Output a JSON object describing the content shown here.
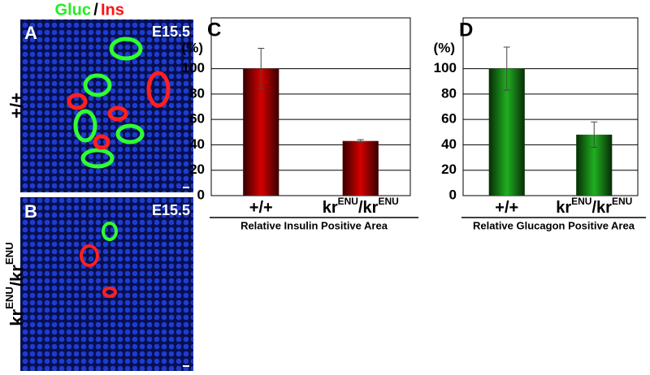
{
  "header": {
    "gluc": "Gluc",
    "slash": "/",
    "ins": "Ins"
  },
  "panels": [
    {
      "letter": "A",
      "stage": "E15.5",
      "genotype": [
        "+/+"
      ]
    },
    {
      "letter": "B",
      "stage": "E15.5",
      "genotype": [
        "kr",
        "ENU",
        "/kr",
        "ENU"
      ]
    }
  ],
  "chart_data": [
    {
      "type": "bar",
      "panel": "C",
      "y_label": "(%)",
      "x_label": "Relative Insulin Positive Area",
      "categories": [
        [
          "+/+"
        ],
        [
          "kr",
          "ENU",
          "/kr",
          "ENU"
        ]
      ],
      "values": [
        100,
        43
      ],
      "errors": [
        16,
        1
      ],
      "color": "#d40000",
      "ylim": [
        0,
        140
      ],
      "yticks": [
        0,
        20,
        40,
        60,
        80,
        100
      ],
      "grid": true
    },
    {
      "type": "bar",
      "panel": "D",
      "y_label": "(%)",
      "x_label": "Relative Glucagon Positive Area",
      "categories": [
        [
          "+/+"
        ],
        [
          "kr",
          "ENU",
          "/kr",
          "ENU"
        ]
      ],
      "values": [
        100,
        48
      ],
      "errors": [
        17,
        10
      ],
      "color": "#1fb01f",
      "ylim": [
        0,
        140
      ],
      "yticks": [
        0,
        20,
        40,
        60,
        80,
        100
      ],
      "grid": true
    }
  ]
}
